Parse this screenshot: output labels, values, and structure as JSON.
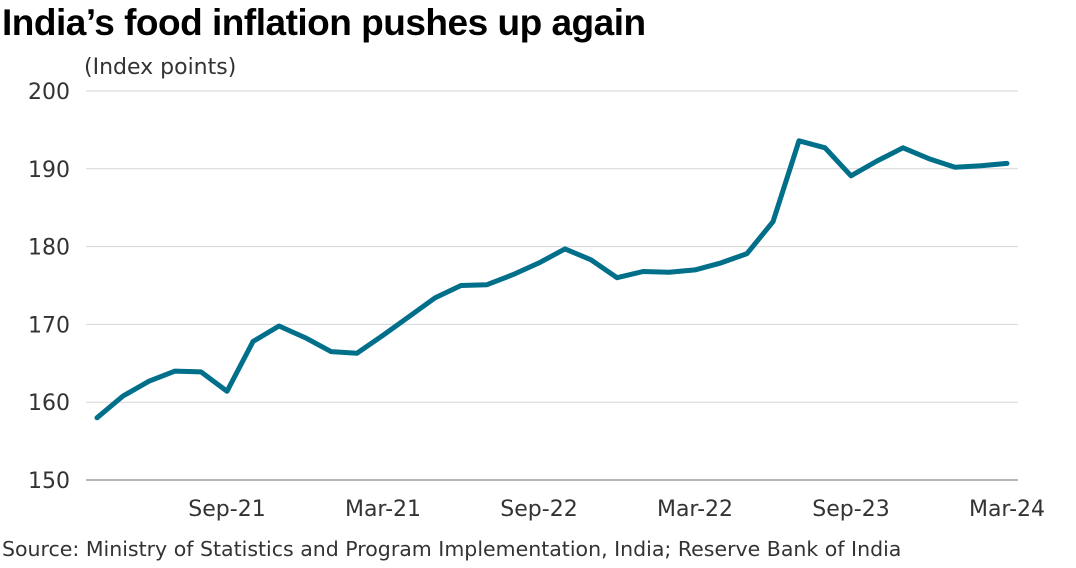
{
  "title": "India’s food inflation pushes up again",
  "source": "Source: Ministry of Statistics and Program Implementation, India; Reserve Bank of India",
  "chart_data": {
    "type": "line",
    "title": "India’s food inflation pushes up again",
    "ylabel": "(Index points)",
    "xlabel": "",
    "ylim": [
      150,
      200
    ],
    "y_ticks": [
      150,
      160,
      170,
      180,
      190,
      200
    ],
    "x_tick_labels": [
      "Sep-21",
      "Mar-21",
      "Sep-22",
      "Mar-22",
      "Sep-23",
      "Mar-24"
    ],
    "x_tick_index": [
      5,
      11,
      17,
      23,
      29,
      35
    ],
    "grid": true,
    "line_color": "#006f8a",
    "series": [
      {
        "values": [
          158.0,
          160.8,
          162.7,
          164.0,
          163.9,
          161.4,
          167.8,
          169.8,
          168.3,
          166.5,
          166.3,
          168.6,
          171.0,
          173.4,
          175.0,
          175.1,
          176.4,
          177.9,
          179.7,
          178.3,
          176.0,
          176.8,
          176.7,
          177.0,
          177.9,
          179.1,
          183.2,
          193.6,
          192.7,
          189.1,
          191.0,
          192.7,
          191.3,
          190.2,
          190.4,
          190.7
        ]
      }
    ]
  }
}
